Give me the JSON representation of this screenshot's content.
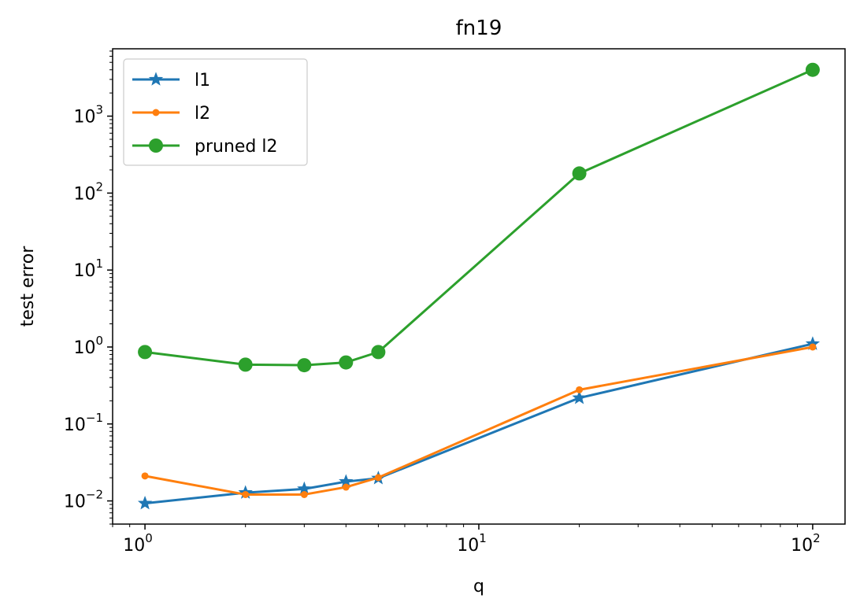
{
  "chart_data": {
    "type": "line",
    "title": "fn19",
    "xlabel": "q",
    "ylabel": "test error",
    "xscale": "log",
    "yscale": "log",
    "xlim": [
      0.8,
      125
    ],
    "ylim": [
      0.005,
      7500
    ],
    "grid": false,
    "legend_position": "upper-left",
    "x_ticks": [
      {
        "value": 1,
        "base": "10",
        "exp": "0"
      },
      {
        "value": 10,
        "base": "10",
        "exp": "1"
      },
      {
        "value": 100,
        "base": "10",
        "exp": "2"
      }
    ],
    "y_ticks": [
      {
        "value": 0.01,
        "base": "10",
        "exp": "−2"
      },
      {
        "value": 0.1,
        "base": "10",
        "exp": "−1"
      },
      {
        "value": 1,
        "base": "10",
        "exp": "0"
      },
      {
        "value": 10,
        "base": "10",
        "exp": "1"
      },
      {
        "value": 100,
        "base": "10",
        "exp": "2"
      },
      {
        "value": 1000,
        "base": "10",
        "exp": "3"
      }
    ],
    "x": [
      1,
      2,
      3,
      4,
      5,
      20,
      100
    ],
    "series": [
      {
        "name": "l1",
        "color": "#1f77b4",
        "marker": "star",
        "values": [
          0.0093,
          0.0128,
          0.0143,
          0.0178,
          0.0197,
          0.218,
          1.1
        ]
      },
      {
        "name": "l2",
        "color": "#ff7f0e",
        "marker": "point",
        "values": [
          0.0211,
          0.0121,
          0.0121,
          0.0151,
          0.0201,
          0.278,
          1.0
        ]
      },
      {
        "name": "pruned l2",
        "color": "#2ca02c",
        "marker": "circle",
        "values": [
          0.86,
          0.59,
          0.58,
          0.63,
          0.86,
          180,
          4000
        ]
      }
    ]
  }
}
